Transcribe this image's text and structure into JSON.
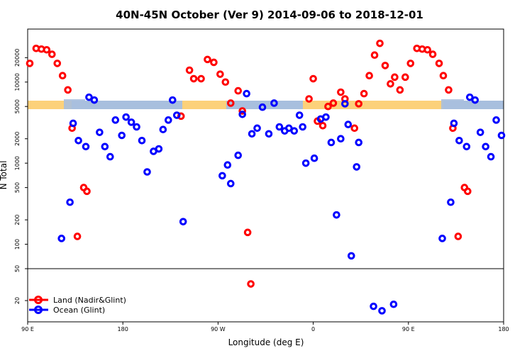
{
  "chart_data": {
    "type": "scatter",
    "title": "40N-45N October (Ver 9)   2014-09-06 to 2018-12-01",
    "xlabel": "Longitude (deg E)",
    "ylabel": "N Total",
    "y_scale": "log",
    "grid": false,
    "legend_position": "bottom-left",
    "x_ticks": [
      {
        "label": "90 E",
        "v": 0
      },
      {
        "label": "180",
        "v": 90
      },
      {
        "label": "90 W",
        "v": 180
      },
      {
        "label": "0",
        "v": 270
      },
      {
        "label": "90 E",
        "v": 360
      },
      {
        "label": "180",
        "v": 450
      }
    ],
    "y_ticks": [
      {
        "label": "20000",
        "v": 20000
      },
      {
        "label": "10000",
        "v": 10000
      },
      {
        "label": "5000",
        "v": 5000
      },
      {
        "label": "2000",
        "v": 2000
      },
      {
        "label": "1000",
        "v": 1000
      },
      {
        "label": "500",
        "v": 500
      },
      {
        "label": "200",
        "v": 200
      },
      {
        "label": "100",
        "v": 100
      },
      {
        "label": "50",
        "v": 50
      },
      {
        "label": "20",
        "v": 20
      }
    ],
    "series": [
      {
        "name": "Land (Nadir&Glint)",
        "color": "#ff0000",
        "points": [
          [
            2,
            17000
          ],
          [
            8,
            26000
          ],
          [
            13,
            25500
          ],
          [
            18,
            25000
          ],
          [
            23,
            22000
          ],
          [
            28,
            17000
          ],
          [
            33,
            12000
          ],
          [
            38,
            8000
          ],
          [
            42,
            2700
          ],
          [
            47,
            125
          ],
          [
            53,
            500
          ],
          [
            56,
            450
          ],
          [
            145,
            3800
          ],
          [
            153,
            14000
          ],
          [
            157,
            11000
          ],
          [
            164,
            11000
          ],
          [
            170,
            19000
          ],
          [
            176,
            17500
          ],
          [
            182,
            12500
          ],
          [
            187,
            10000
          ],
          [
            192,
            5500
          ],
          [
            199,
            7800
          ],
          [
            203,
            4400
          ],
          [
            208,
            140
          ],
          [
            211,
            32
          ],
          [
            266,
            6200
          ],
          [
            270,
            11000
          ],
          [
            274,
            3300
          ],
          [
            279,
            2900
          ],
          [
            284,
            5000
          ],
          [
            289,
            5500
          ],
          [
            296,
            7500
          ],
          [
            300,
            6200
          ],
          [
            309,
            2700
          ],
          [
            313,
            5400
          ],
          [
            318,
            7200
          ],
          [
            323,
            12000
          ],
          [
            328,
            21500
          ],
          [
            333,
            30000
          ],
          [
            338,
            16000
          ],
          [
            343,
            9500
          ],
          [
            347,
            11500
          ],
          [
            352,
            8000
          ],
          [
            357,
            11500
          ],
          [
            362,
            17000
          ],
          [
            368,
            26000
          ],
          [
            373,
            25500
          ],
          [
            378,
            25000
          ],
          [
            383,
            22000
          ],
          [
            389,
            17000
          ],
          [
            393,
            12000
          ],
          [
            398,
            8000
          ],
          [
            402,
            2700
          ],
          [
            407,
            125
          ],
          [
            413,
            500
          ],
          [
            416,
            450
          ]
        ]
      },
      {
        "name": "Ocean (Glint)",
        "color": "#0000ff",
        "points": [
          [
            32,
            118
          ],
          [
            40,
            330
          ],
          [
            43,
            3100
          ],
          [
            48,
            1900
          ],
          [
            55,
            1600
          ],
          [
            58,
            6500
          ],
          [
            63,
            6000
          ],
          [
            68,
            2400
          ],
          [
            73,
            1600
          ],
          [
            78,
            1200
          ],
          [
            83,
            3400
          ],
          [
            89,
            2200
          ],
          [
            93,
            3700
          ],
          [
            98,
            3200
          ],
          [
            103,
            2800
          ],
          [
            108,
            1900
          ],
          [
            113,
            780
          ],
          [
            119,
            1400
          ],
          [
            124,
            1500
          ],
          [
            128,
            2600
          ],
          [
            133,
            3400
          ],
          [
            137,
            6000
          ],
          [
            141,
            3900
          ],
          [
            147,
            190
          ],
          [
            184,
            700
          ],
          [
            189,
            950
          ],
          [
            192,
            560
          ],
          [
            199,
            1250
          ],
          [
            203,
            4000
          ],
          [
            207,
            7200
          ],
          [
            212,
            2300
          ],
          [
            217,
            2700
          ],
          [
            222,
            4900
          ],
          [
            228,
            2300
          ],
          [
            233,
            5500
          ],
          [
            238,
            2800
          ],
          [
            243,
            2500
          ],
          [
            247,
            2700
          ],
          [
            252,
            2500
          ],
          [
            257,
            3900
          ],
          [
            260,
            2800
          ],
          [
            263,
            1000
          ],
          [
            271,
            1150
          ],
          [
            277,
            3500
          ],
          [
            282,
            3700
          ],
          [
            287,
            1800
          ],
          [
            292,
            230
          ],
          [
            296,
            2000
          ],
          [
            300,
            5400
          ],
          [
            303,
            3000
          ],
          [
            306,
            72
          ],
          [
            311,
            900
          ],
          [
            313,
            1800
          ],
          [
            327,
            17
          ],
          [
            335,
            15
          ],
          [
            346,
            18
          ],
          [
            392,
            118
          ],
          [
            400,
            330
          ],
          [
            403,
            3100
          ],
          [
            408,
            1900
          ],
          [
            415,
            1600
          ],
          [
            418,
            6500
          ],
          [
            423,
            6000
          ],
          [
            428,
            2400
          ],
          [
            433,
            1600
          ],
          [
            438,
            1200
          ],
          [
            443,
            3400
          ],
          [
            448,
            2200
          ]
        ]
      }
    ]
  }
}
